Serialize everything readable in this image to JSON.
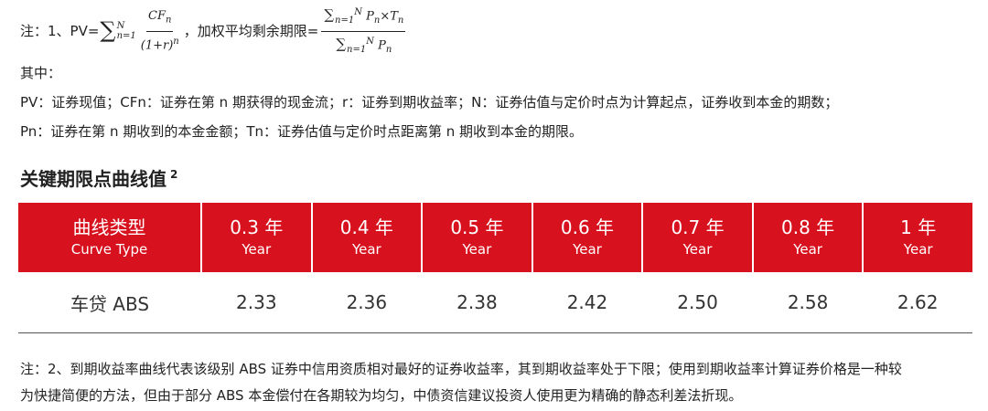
{
  "formula": {
    "prefix": "注：1、PV=",
    "pv_numerator": "CF",
    "pv_numerator_sub": "n",
    "pv_denominator_open": "(1+r)",
    "pv_denominator_exp": "n",
    "separator": "，加权平均剩余期限=",
    "sum_symbol": "∑",
    "sum_lower": "n=1",
    "sum_upper": "N",
    "wal_numerator": "P",
    "wal_numerator_sub": "n",
    "times": "×T",
    "times_sub": "n",
    "wal_denominator": "P",
    "wal_denominator_sub": "n"
  },
  "notes": {
    "among": "其中：",
    "line1": "PV：证券现值；CFn：证券在第 n 期获得的现金流；r：证券到期收益率；N：证券估值与定价时点为计算起点，证券收到本金的期数；",
    "line2": "Pn：证券在第 n 期收到的本金金额；Tn：证券估值与定价时点距离第 n 期收到本金的期限。"
  },
  "heading": {
    "title": "关键期限点曲线值",
    "footnote": "2"
  },
  "table": {
    "columns": [
      {
        "cn": "曲线类型",
        "en": "Curve Type"
      },
      {
        "cn": "0.3 年",
        "en": "Year"
      },
      {
        "cn": "0.4 年",
        "en": "Year"
      },
      {
        "cn": "0.5 年",
        "en": "Year"
      },
      {
        "cn": "0.6 年",
        "en": "Year"
      },
      {
        "cn": "0.7 年",
        "en": "Year"
      },
      {
        "cn": "0.8 年",
        "en": "Year"
      },
      {
        "cn": "1 年",
        "en": "Year"
      }
    ],
    "rows": [
      [
        "车贷 ABS",
        "2.33",
        "2.36",
        "2.38",
        "2.42",
        "2.50",
        "2.58",
        "2.62"
      ]
    ],
    "header_color": "#d7111e"
  },
  "note2": {
    "line1": "注：2、到期收益率曲线代表该级别 ABS 证券中信用资质相对最好的证券收益率，其到期收益率处于下限；使用到期收益率计算证券价格是一种较",
    "line2": "为快捷简便的方法，但由于部分 ABS 本金偿付在各期较为均匀，中债资信建议投资人使用更为精确的静态利差法折现。"
  }
}
